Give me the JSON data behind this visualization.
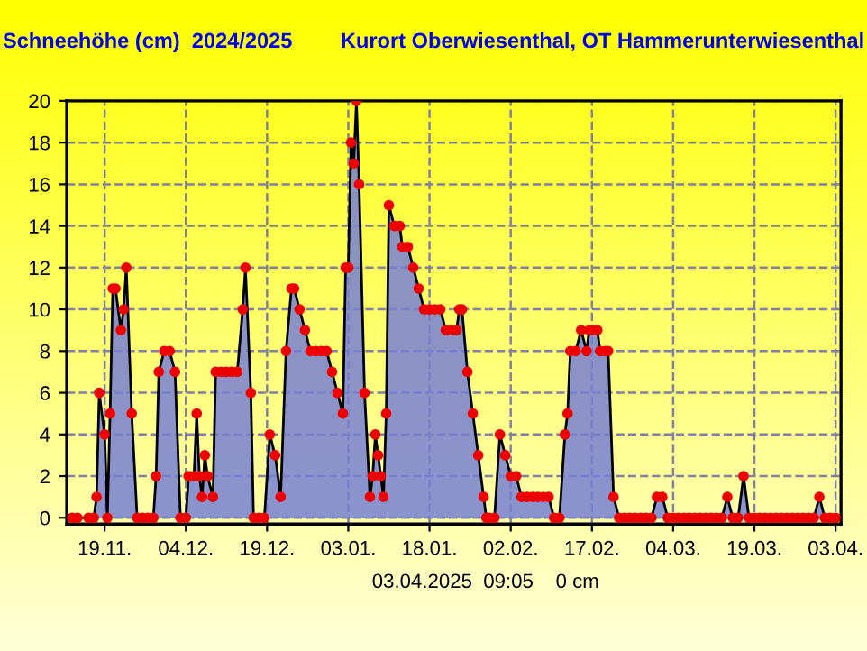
{
  "chart_data": {
    "type": "area",
    "title": "Schneehöhe (cm)  2024/2025",
    "subtitle": "Kurort Oberwiesenthal, OT Hammerunterwiesenthal",
    "annotations": [
      "03.04.2025  09:05    0 cm"
    ],
    "series": [
      {
        "color": "#7780d4",
        "marker": "circle",
        "line_style": "solid",
        "x": [
          "2024-11-13",
          "2024-11-14",
          "2024-11-16",
          "2024-11-17",
          "2024-11-17T12:00",
          "2024-11-18",
          "2024-11-19",
          "2024-11-19T12:00",
          "2024-11-20",
          "2024-11-20T12:00",
          "2024-11-21",
          "2024-11-22",
          "2024-11-22T12:00",
          "2024-11-23",
          "2024-11-24",
          "2024-11-25",
          "2024-11-26",
          "2024-11-27",
          "2024-11-28",
          "2024-11-28T12:00",
          "2024-11-29",
          "2024-11-30",
          "2024-12-01",
          "2024-12-02",
          "2024-12-03",
          "2024-12-04",
          "2024-12-04T12:00",
          "2024-12-05T12:00",
          "2024-12-06",
          "2024-12-06T12:00",
          "2024-12-07",
          "2024-12-07T12:00",
          "2024-12-08",
          "2024-12-09",
          "2024-12-09T12:00",
          "2024-12-10T12:00",
          "2024-12-11T12:00",
          "2024-12-12T12:00",
          "2024-12-13T12:00",
          "2024-12-14T12:00",
          "2024-12-15",
          "2024-12-16",
          "2024-12-16T12:00",
          "2024-12-17T12:00",
          "2024-12-18T12:00",
          "2024-12-19T12:00",
          "2024-12-20T12:00",
          "2024-12-21T12:00",
          "2024-12-22T12:00",
          "2024-12-23T12:00",
          "2024-12-24",
          "2024-12-25",
          "2024-12-26",
          "2024-12-27",
          "2024-12-28",
          "2024-12-29",
          "2024-12-30",
          "2024-12-31",
          "2025-01-01",
          "2025-01-02",
          "2025-01-02T12:00",
          "2025-01-03",
          "2025-01-03T12:00",
          "2025-01-04",
          "2025-01-04T12:00",
          "2025-01-05",
          "2025-01-06",
          "2025-01-07",
          "2025-01-07T12:00",
          "2025-01-08",
          "2025-01-08T12:00",
          "2025-01-09",
          "2025-01-09T12:00",
          "2025-01-10",
          "2025-01-10T12:00",
          "2025-01-11T12:00",
          "2025-01-12T12:00",
          "2025-01-13",
          "2025-01-14",
          "2025-01-15",
          "2025-01-16",
          "2025-01-17",
          "2025-01-18",
          "2025-01-19",
          "2025-01-20",
          "2025-01-21",
          "2025-01-22",
          "2025-01-23",
          "2025-01-23T12:00",
          "2025-01-24",
          "2025-01-25",
          "2025-01-26",
          "2025-01-27",
          "2025-01-28",
          "2025-01-28T12:00",
          "2025-01-29",
          "2025-01-30",
          "2025-01-31",
          "2025-02-01",
          "2025-02-02",
          "2025-02-03",
          "2025-02-04",
          "2025-02-05",
          "2025-02-06",
          "2025-02-07",
          "2025-02-08",
          "2025-02-09",
          "2025-02-10",
          "2025-02-11",
          "2025-02-12",
          "2025-02-12T12:00",
          "2025-02-13",
          "2025-02-14",
          "2025-02-15",
          "2025-02-16",
          "2025-02-16T12:00",
          "2025-02-17T12:00",
          "2025-02-18",
          "2025-02-18T12:00",
          "2025-02-19T12:00",
          "2025-02-20",
          "2025-02-21",
          "2025-02-22",
          "2025-02-23",
          "2025-02-24",
          "2025-02-25",
          "2025-02-26",
          "2025-02-27",
          "2025-02-28",
          "2025-03-01",
          "2025-03-02",
          "2025-03-03",
          "2025-03-04",
          "2025-03-05",
          "2025-03-06",
          "2025-03-07",
          "2025-03-08",
          "2025-03-09",
          "2025-03-10",
          "2025-03-11",
          "2025-03-12",
          "2025-03-13",
          "2025-03-14",
          "2025-03-15",
          "2025-03-16",
          "2025-03-17",
          "2025-03-18",
          "2025-03-19",
          "2025-03-20",
          "2025-03-21",
          "2025-03-22",
          "2025-03-23",
          "2025-03-24",
          "2025-03-25",
          "2025-03-26",
          "2025-03-27",
          "2025-03-28",
          "2025-03-29",
          "2025-03-30",
          "2025-03-31",
          "2025-04-01",
          "2025-04-02",
          "2025-04-03"
        ],
        "values": [
          0,
          0,
          0,
          0,
          1,
          6,
          4,
          0,
          5,
          11,
          11,
          9,
          10,
          12,
          5,
          0,
          0,
          0,
          0,
          2,
          7,
          8,
          8,
          7,
          0,
          0,
          2,
          2,
          5,
          2,
          1,
          3,
          2,
          1,
          7,
          7,
          7,
          7,
          7,
          10,
          12,
          6,
          0,
          0,
          0,
          4,
          3,
          1,
          8,
          11,
          11,
          10,
          9,
          8,
          8,
          8,
          8,
          7,
          6,
          5,
          12,
          12,
          18,
          17,
          20,
          16,
          6,
          1,
          2,
          4,
          3,
          2,
          1,
          5,
          15,
          14,
          14,
          13,
          13,
          12,
          11,
          10,
          10,
          10,
          10,
          9,
          9,
          9,
          10,
          10,
          7,
          5,
          3,
          1,
          0,
          0,
          0,
          4,
          3,
          2,
          2,
          1,
          1,
          1,
          1,
          1,
          1,
          0,
          0,
          4,
          5,
          8,
          8,
          9,
          8,
          9,
          9,
          9,
          8,
          8,
          8,
          1,
          0,
          0,
          0,
          0,
          0,
          0,
          0,
          1,
          1,
          0,
          0,
          0,
          0,
          0,
          0,
          0,
          0,
          0,
          0,
          0,
          1,
          0,
          0,
          2,
          0,
          0,
          0,
          0,
          0,
          0,
          0,
          0,
          0,
          0,
          0,
          0,
          0,
          1,
          0,
          0,
          0
        ]
      }
    ],
    "xlim": [
      "2024-11-12",
      "2025-04-04"
    ],
    "xticks": [
      {
        "value": "2024-11-19",
        "label": "19.11."
      },
      {
        "value": "2024-12-04",
        "label": "04.12."
      },
      {
        "value": "2024-12-19",
        "label": "19.12."
      },
      {
        "value": "2025-01-03",
        "label": "03.01."
      },
      {
        "value": "2025-01-18",
        "label": "18.01."
      },
      {
        "value": "2025-02-02",
        "label": "02.02."
      },
      {
        "value": "2025-02-17",
        "label": "17.02."
      },
      {
        "value": "2025-03-04",
        "label": "04.03."
      },
      {
        "value": "2025-03-19",
        "label": "19.03."
      },
      {
        "value": "2025-04-03",
        "label": "03.04."
      }
    ],
    "ylim": [
      -0.3,
      20
    ],
    "yticks": [
      0,
      2,
      4,
      6,
      8,
      10,
      12,
      14,
      16,
      18,
      20
    ],
    "grid": true,
    "legend": false
  }
}
